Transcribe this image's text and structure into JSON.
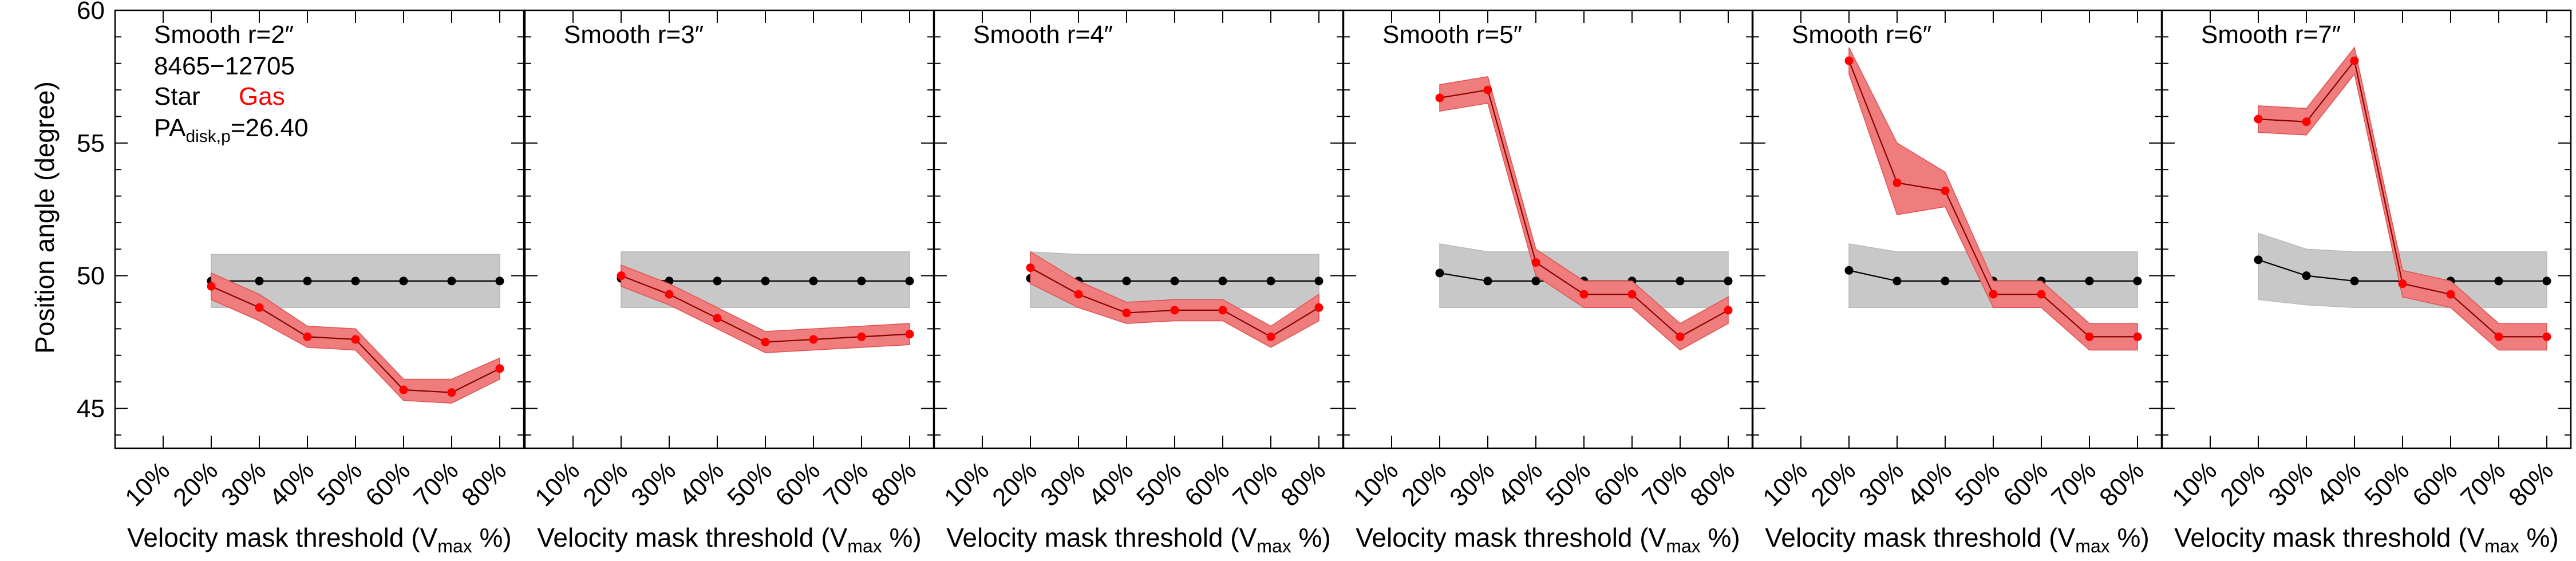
{
  "figure": {
    "ylabel": "Position angle (degree)",
    "colors": {
      "star": "#000000",
      "gas": "#ff0000",
      "gas_band": "#f07d7d",
      "star_band": "#c8c8c8"
    },
    "annotation": {
      "id": "8465−12705",
      "star_label": "Star",
      "gas_label": "Gas",
      "pa_prefix": "PA",
      "pa_subscript": "disk,p",
      "pa_value": "=26.40"
    }
  },
  "chart_data": [
    {
      "type": "line",
      "title": "Smooth r=2″",
      "xlabel_main": "Velocity mask threshold (V",
      "xlabel_sub": "max",
      "xlabel_end": " %)",
      "categories": [
        "10%",
        "20%",
        "30%",
        "40%",
        "50%",
        "60%",
        "70%",
        "80%"
      ],
      "x": [
        20,
        30,
        40,
        50,
        60,
        70,
        80
      ],
      "ylim": [
        43.5,
        60
      ],
      "yticks": [
        45,
        50,
        55,
        60
      ],
      "series": [
        {
          "name": "Star",
          "values": [
            49.8,
            49.8,
            49.8,
            49.8,
            49.8,
            49.8,
            49.8
          ],
          "band_lo": [
            48.8,
            48.8,
            48.8,
            48.8,
            48.8,
            48.8,
            48.8
          ],
          "band_hi": [
            50.8,
            50.8,
            50.8,
            50.8,
            50.8,
            50.8,
            50.8
          ]
        },
        {
          "name": "Gas",
          "values": [
            49.6,
            48.8,
            47.7,
            47.6,
            45.7,
            45.6,
            46.5
          ],
          "band_lo": [
            49.1,
            48.3,
            47.3,
            47.2,
            45.3,
            45.2,
            46.1
          ],
          "band_hi": [
            50.1,
            49.3,
            48.1,
            48.0,
            46.1,
            46.1,
            46.9
          ]
        }
      ]
    },
    {
      "type": "line",
      "title": "Smooth r=3″",
      "xlabel_main": "Velocity mask threshold (V",
      "xlabel_sub": "max",
      "xlabel_end": " %)",
      "categories": [
        "10%",
        "20%",
        "30%",
        "40%",
        "50%",
        "60%",
        "70%",
        "80%"
      ],
      "x": [
        20,
        30,
        40,
        50,
        60,
        70,
        80
      ],
      "ylim": [
        43.5,
        60
      ],
      "yticks": [
        45,
        50,
        55,
        60
      ],
      "series": [
        {
          "name": "Star",
          "values": [
            49.9,
            49.8,
            49.8,
            49.8,
            49.8,
            49.8,
            49.8
          ],
          "band_lo": [
            48.8,
            48.8,
            48.8,
            48.8,
            48.8,
            48.8,
            48.8
          ],
          "band_hi": [
            50.9,
            50.9,
            50.9,
            50.9,
            50.9,
            50.9,
            50.9
          ]
        },
        {
          "name": "Gas",
          "values": [
            50.0,
            49.3,
            48.4,
            47.5,
            47.6,
            47.7,
            47.8
          ],
          "band_lo": [
            49.6,
            48.9,
            48.0,
            47.1,
            47.2,
            47.3,
            47.4
          ],
          "band_hi": [
            50.4,
            49.7,
            48.8,
            47.9,
            48.0,
            48.1,
            48.2
          ]
        }
      ]
    },
    {
      "type": "line",
      "title": "Smooth r=4″",
      "xlabel_main": "Velocity mask threshold (V",
      "xlabel_sub": "max",
      "xlabel_end": " %)",
      "categories": [
        "10%",
        "20%",
        "30%",
        "40%",
        "50%",
        "60%",
        "70%",
        "80%"
      ],
      "x": [
        20,
        30,
        40,
        50,
        60,
        70,
        80
      ],
      "ylim": [
        43.5,
        60
      ],
      "yticks": [
        45,
        50,
        55,
        60
      ],
      "series": [
        {
          "name": "Star",
          "values": [
            49.9,
            49.8,
            49.8,
            49.8,
            49.8,
            49.8,
            49.8
          ],
          "band_lo": [
            48.8,
            48.8,
            48.8,
            48.8,
            48.8,
            48.8,
            48.8
          ],
          "band_hi": [
            50.9,
            50.8,
            50.8,
            50.8,
            50.8,
            50.8,
            50.8
          ]
        },
        {
          "name": "Gas",
          "values": [
            50.3,
            49.3,
            48.6,
            48.7,
            48.7,
            47.7,
            48.8
          ],
          "band_lo": [
            49.7,
            48.8,
            48.2,
            48.3,
            48.3,
            47.3,
            48.3
          ],
          "band_hi": [
            50.9,
            49.8,
            49.0,
            49.1,
            49.1,
            48.1,
            49.3
          ]
        }
      ]
    },
    {
      "type": "line",
      "title": "Smooth r=5″",
      "xlabel_main": "Velocity mask threshold (V",
      "xlabel_sub": "max",
      "xlabel_end": " %)",
      "categories": [
        "10%",
        "20%",
        "30%",
        "40%",
        "50%",
        "60%",
        "70%",
        "80%"
      ],
      "x": [
        20,
        30,
        40,
        50,
        60,
        70,
        80
      ],
      "ylim": [
        43.5,
        60
      ],
      "yticks": [
        45,
        50,
        55,
        60
      ],
      "series": [
        {
          "name": "Star",
          "values": [
            50.1,
            49.8,
            49.8,
            49.8,
            49.8,
            49.8,
            49.8
          ],
          "band_lo": [
            48.8,
            48.8,
            48.8,
            48.8,
            48.8,
            48.8,
            48.8
          ],
          "band_hi": [
            51.2,
            50.9,
            50.9,
            50.9,
            50.9,
            50.9,
            50.9
          ]
        },
        {
          "name": "Gas",
          "values": [
            56.7,
            57.0,
            50.5,
            49.3,
            49.3,
            47.7,
            48.7
          ],
          "band_lo": [
            56.2,
            56.5,
            50.0,
            48.8,
            48.8,
            47.2,
            48.2
          ],
          "band_hi": [
            57.2,
            57.5,
            51.0,
            49.8,
            49.8,
            48.2,
            49.2
          ]
        }
      ]
    },
    {
      "type": "line",
      "title": "Smooth r=6″",
      "xlabel_main": "Velocity mask threshold (V",
      "xlabel_sub": "max",
      "xlabel_end": " %)",
      "categories": [
        "10%",
        "20%",
        "30%",
        "40%",
        "50%",
        "60%",
        "70%",
        "80%"
      ],
      "x": [
        20,
        30,
        40,
        50,
        60,
        70,
        80
      ],
      "ylim": [
        43.5,
        60
      ],
      "yticks": [
        45,
        50,
        55,
        60
      ],
      "series": [
        {
          "name": "Star",
          "values": [
            50.2,
            49.8,
            49.8,
            49.8,
            49.8,
            49.8,
            49.8
          ],
          "band_lo": [
            48.8,
            48.8,
            48.8,
            48.8,
            48.8,
            48.8,
            48.8
          ],
          "band_hi": [
            51.2,
            50.9,
            50.9,
            50.9,
            50.9,
            50.9,
            50.9
          ]
        },
        {
          "name": "Gas",
          "values": [
            58.1,
            53.5,
            53.2,
            49.3,
            49.3,
            47.7,
            47.7
          ],
          "band_lo": [
            57.6,
            52.3,
            52.6,
            48.8,
            48.8,
            47.2,
            47.2
          ],
          "band_hi": [
            58.6,
            55.0,
            53.9,
            49.8,
            49.8,
            48.2,
            48.2
          ]
        }
      ]
    },
    {
      "type": "line",
      "title": "Smooth r=7″",
      "xlabel_main": "Velocity mask threshold (V",
      "xlabel_sub": "max",
      "xlabel_end": " %)",
      "categories": [
        "10%",
        "20%",
        "30%",
        "40%",
        "50%",
        "60%",
        "70%",
        "80%"
      ],
      "x": [
        20,
        30,
        40,
        50,
        60,
        70,
        80
      ],
      "ylim": [
        43.5,
        60
      ],
      "yticks": [
        45,
        50,
        55,
        60
      ],
      "series": [
        {
          "name": "Star",
          "values": [
            50.6,
            50.0,
            49.8,
            49.8,
            49.8,
            49.8,
            49.8
          ],
          "band_lo": [
            49.1,
            48.9,
            48.8,
            48.8,
            48.8,
            48.8,
            48.8
          ],
          "band_hi": [
            51.6,
            51.0,
            50.9,
            50.9,
            50.9,
            50.9,
            50.9
          ]
        },
        {
          "name": "Gas",
          "values": [
            55.9,
            55.8,
            58.1,
            49.7,
            49.3,
            47.7,
            47.7
          ],
          "band_lo": [
            55.4,
            55.3,
            57.6,
            49.2,
            48.8,
            47.2,
            47.2
          ],
          "band_hi": [
            56.4,
            56.3,
            58.6,
            50.2,
            49.8,
            48.2,
            48.2
          ]
        }
      ]
    }
  ]
}
